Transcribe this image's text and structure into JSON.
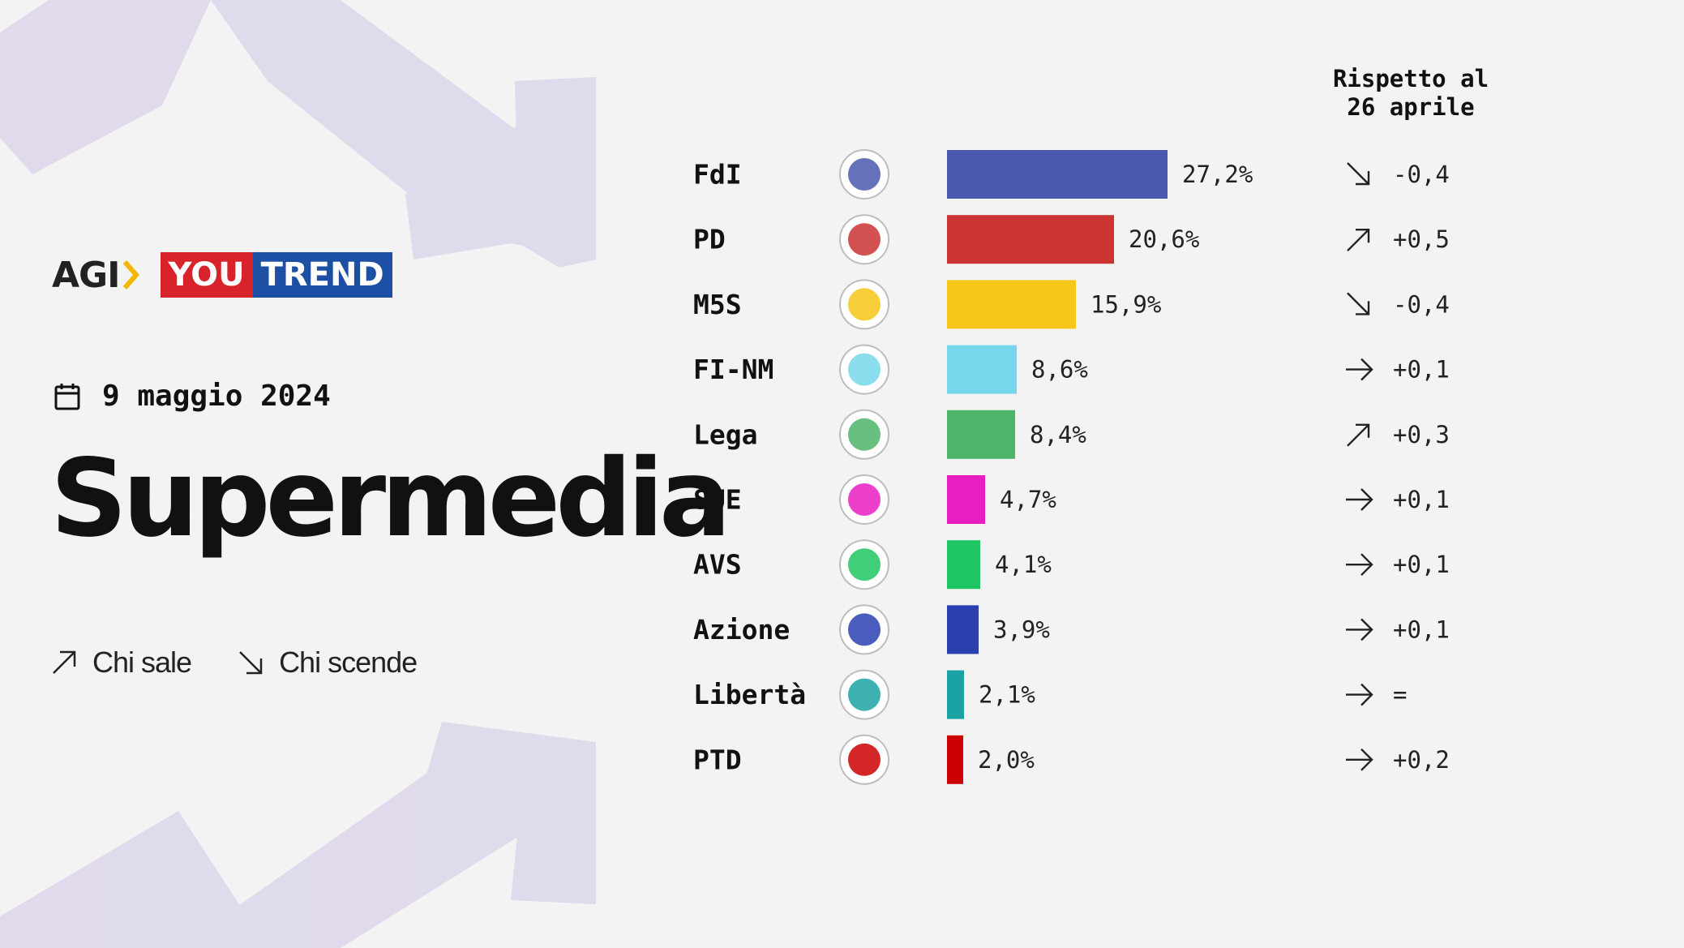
{
  "brand": {
    "agi": "AGI",
    "youtrend_you": "YOU",
    "youtrend_trend": "TREND"
  },
  "date": "9 maggio 2024",
  "title": "Supermedia",
  "legend": {
    "up": "Chi sale",
    "down": "Chi scende"
  },
  "column_header": [
    "Rispetto al",
    "26 aprile"
  ],
  "colors": {
    "background": "#f3f3f3",
    "arrow_shape": "#d9d2ea"
  },
  "chart_data": {
    "type": "bar",
    "orientation": "horizontal",
    "unit": "%",
    "categories": [
      "FdI",
      "PD",
      "M5S",
      "FI-NM",
      "Lega",
      "SUE",
      "AVS",
      "Azione",
      "Libertà",
      "PTD"
    ],
    "values": [
      27.2,
      20.6,
      15.9,
      8.6,
      8.4,
      4.7,
      4.1,
      3.9,
      2.1,
      2.0
    ],
    "value_labels": [
      "27,2%",
      "20,6%",
      "15,9%",
      "8,6%",
      "8,4%",
      "4,7%",
      "4,1%",
      "3,9%",
      "2,1%",
      "2,0%"
    ],
    "colors": [
      "#4a58ad",
      "#cc3333",
      "#f5c518",
      "#76d7ea",
      "#4cb56a",
      "#e91ec1",
      "#1ec562",
      "#2a3fb0",
      "#1ba3a3",
      "#cc0000"
    ],
    "logo_icons": [
      "fdi-logo-icon",
      "pd-logo-icon",
      "m5s-logo-icon",
      "fi-nm-logo-icon",
      "lega-logo-icon",
      "sue-logo-icon",
      "avs-logo-icon",
      "azione-logo-icon",
      "liberta-logo-icon",
      "ptd-logo-icon"
    ],
    "change": {
      "title": [
        "Rispetto al",
        "26 aprile"
      ],
      "values": [
        -0.4,
        0.5,
        -0.4,
        0.1,
        0.3,
        0.1,
        0.1,
        0.1,
        0,
        0.2
      ],
      "labels": [
        "-0,4",
        "+0,5",
        "-0,4",
        "+0,1",
        "+0,3",
        "+0,1",
        "+0,1",
        "+0,1",
        "=",
        "+0,2"
      ],
      "directions": [
        "down",
        "up",
        "down",
        "flat",
        "up",
        "flat",
        "flat",
        "flat",
        "flat",
        "flat"
      ]
    },
    "xlim": [
      0,
      27.2
    ],
    "grid": false,
    "legend": "left"
  }
}
